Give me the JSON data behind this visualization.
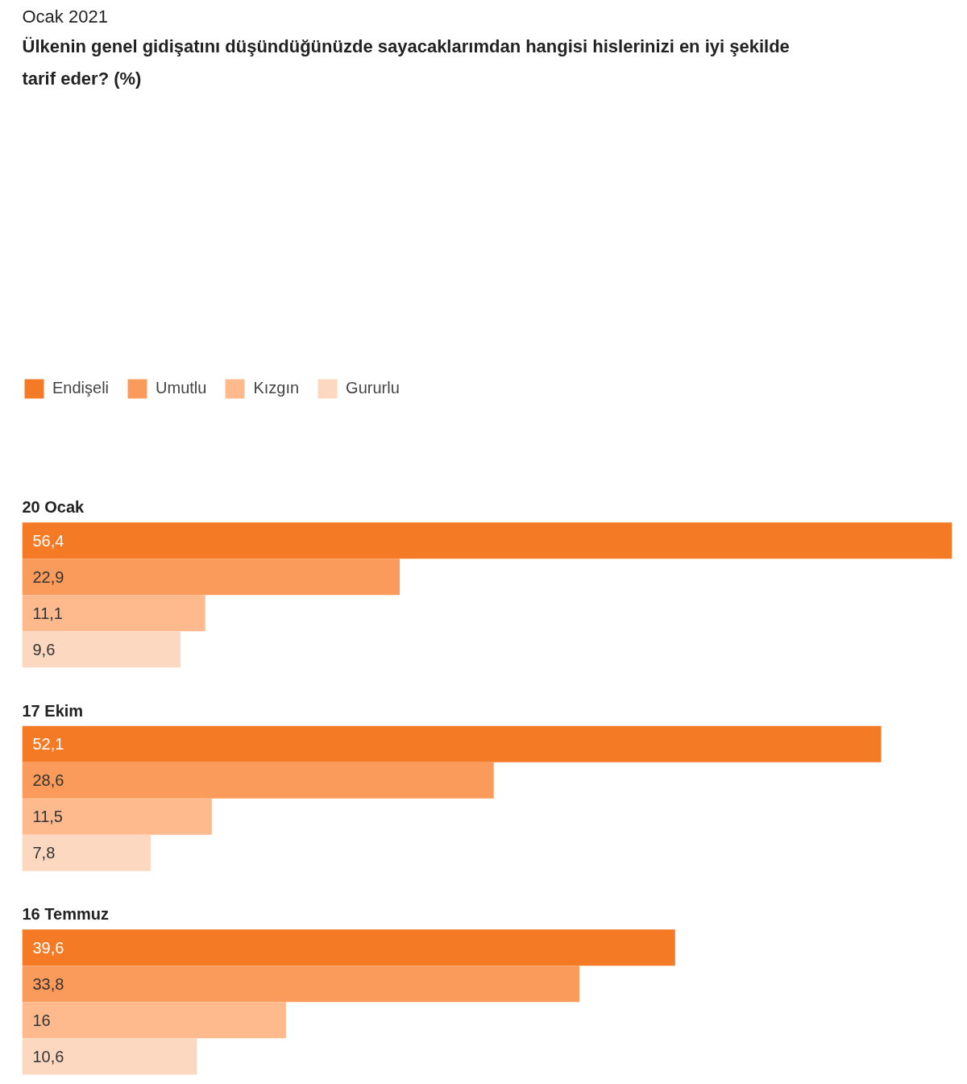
{
  "chart_data": {
    "type": "bar",
    "orientation": "horizontal",
    "subtitle": "Ocak 2021",
    "title": "Ülkenin genel gidişatını düşündüğünüzde sayacaklarımdan hangisi hislerinizi en iyi şekilde tarif eder? (%)",
    "categories": [
      "20 Ocak",
      "17 Ekim",
      "16 Temmuz"
    ],
    "series": [
      {
        "name": "Endişeli",
        "color": "#f47a26",
        "values": [
          56.4,
          52.1,
          39.6
        ],
        "value_labels": [
          "56,4",
          "52,1",
          "39,6"
        ]
      },
      {
        "name": "Umutlu",
        "color": "#fb9b5b",
        "values": [
          22.9,
          28.6,
          33.8
        ],
        "value_labels": [
          "22,9",
          "28,6",
          "33,8"
        ]
      },
      {
        "name": "Kızgın",
        "color": "#feb98c",
        "values": [
          11.1,
          11.5,
          16
        ],
        "value_labels": [
          "11,1",
          "11,5",
          "16"
        ]
      },
      {
        "name": "Gururlu",
        "color": "#fdd8c0",
        "values": [
          9.6,
          7.8,
          10.6
        ],
        "value_labels": [
          "9,6",
          "7,8",
          "10,6"
        ]
      }
    ],
    "xlim": [
      0,
      56.4
    ],
    "tick_labels": false,
    "grid": false,
    "legend": "top left"
  }
}
